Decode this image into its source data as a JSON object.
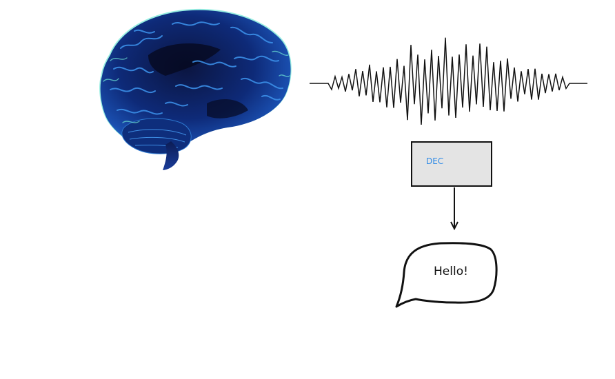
{
  "decoder": {
    "label": "DEC"
  },
  "speech_bubble": {
    "text": "Hello!"
  },
  "colors": {
    "brain_base": "#0a1238",
    "brain_highlight": "#2a7fd6",
    "brain_glow": "#3fe0c8",
    "decoder_fill": "#e4e4e4",
    "decoder_label": "#2e8ae6",
    "stroke": "#111111"
  },
  "icons": {
    "brain": "brain-icon",
    "signal": "neural-signal-waveform",
    "arrow": "arrow-down-icon",
    "bubble": "speech-bubble-icon"
  }
}
